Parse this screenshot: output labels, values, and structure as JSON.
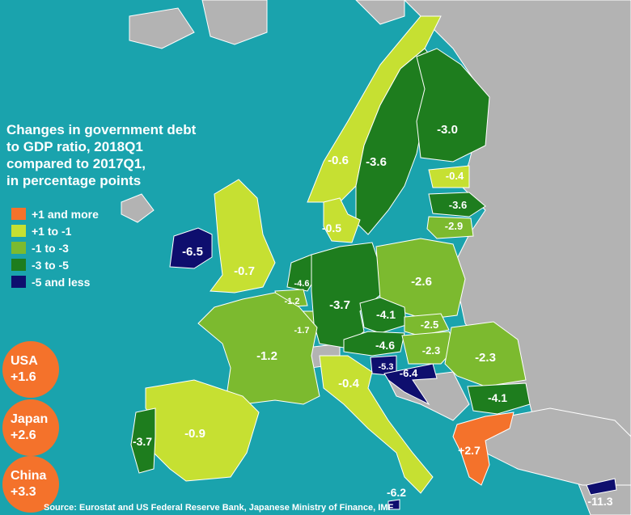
{
  "title_lines": [
    "Changes in government debt",
    "to GDP ratio, 2018Q1",
    "compared to 2017Q1,",
    "in percentage points"
  ],
  "legend": [
    {
      "label": "+1 and more",
      "color": "#f4722b"
    },
    {
      "label": "+1 to -1",
      "color": "#c6e032"
    },
    {
      "label": "-1 to -3",
      "color": "#7cba2f"
    },
    {
      "label": "-3 to -5",
      "color": "#1e7d1e"
    },
    {
      "label": "-5 and less",
      "color": "#0e0e6e"
    }
  ],
  "callouts": [
    {
      "name": "USA",
      "value": "+1.6"
    },
    {
      "name": "Japan",
      "value": "+2.6"
    },
    {
      "name": "China",
      "value": "+3.3"
    }
  ],
  "source": "Source: Eurostat and US Federal Reserve Bank, Japanese Ministry of Finance, IMF",
  "colors": {
    "sea": "#1aa3ad",
    "non_member": "#b3b3b3",
    "border": "#ffffff",
    "callout": "#f4722b"
  },
  "countries": [
    {
      "id": "ireland",
      "value": "-6.5",
      "category": 4
    },
    {
      "id": "uk",
      "value": "-0.7",
      "category": 1
    },
    {
      "id": "portugal",
      "value": "-3.7",
      "category": 3
    },
    {
      "id": "spain",
      "value": "-0.9",
      "category": 1
    },
    {
      "id": "france",
      "value": "-1.2",
      "category": 2
    },
    {
      "id": "belgium",
      "value": "-1.2",
      "category": 2
    },
    {
      "id": "netherlands",
      "value": "-4.6",
      "category": 3
    },
    {
      "id": "luxembourg",
      "value": "-1.7",
      "category": 2
    },
    {
      "id": "germany",
      "value": "-3.7",
      "category": 3
    },
    {
      "id": "denmark",
      "value": "-0.5",
      "category": 1
    },
    {
      "id": "norway",
      "value": "-0.6",
      "category": 1
    },
    {
      "id": "sweden",
      "value": "-3.6",
      "category": 3
    },
    {
      "id": "finland",
      "value": "-3.0",
      "category": 3
    },
    {
      "id": "estonia",
      "value": "-0.4",
      "category": 1
    },
    {
      "id": "latvia",
      "value": "-3.6",
      "category": 3
    },
    {
      "id": "lithuania",
      "value": "-2.9",
      "category": 2
    },
    {
      "id": "poland",
      "value": "-2.6",
      "category": 2
    },
    {
      "id": "czechia",
      "value": "-4.1",
      "category": 3
    },
    {
      "id": "slovakia",
      "value": "-2.5",
      "category": 2
    },
    {
      "id": "austria",
      "value": "-4.6",
      "category": 3
    },
    {
      "id": "hungary",
      "value": "-2.3",
      "category": 2
    },
    {
      "id": "slovenia",
      "value": "-5.3",
      "category": 4
    },
    {
      "id": "croatia",
      "value": "-6.4",
      "category": 4
    },
    {
      "id": "romania",
      "value": "-2.3",
      "category": 2
    },
    {
      "id": "bulgaria",
      "value": "-4.1",
      "category": 3
    },
    {
      "id": "italy",
      "value": "-0.4",
      "category": 1
    },
    {
      "id": "malta",
      "value": "-6.2",
      "category": 4
    },
    {
      "id": "greece",
      "value": "+2.7",
      "category": 0
    },
    {
      "id": "cyprus",
      "value": "-11.3",
      "category": 4
    }
  ]
}
